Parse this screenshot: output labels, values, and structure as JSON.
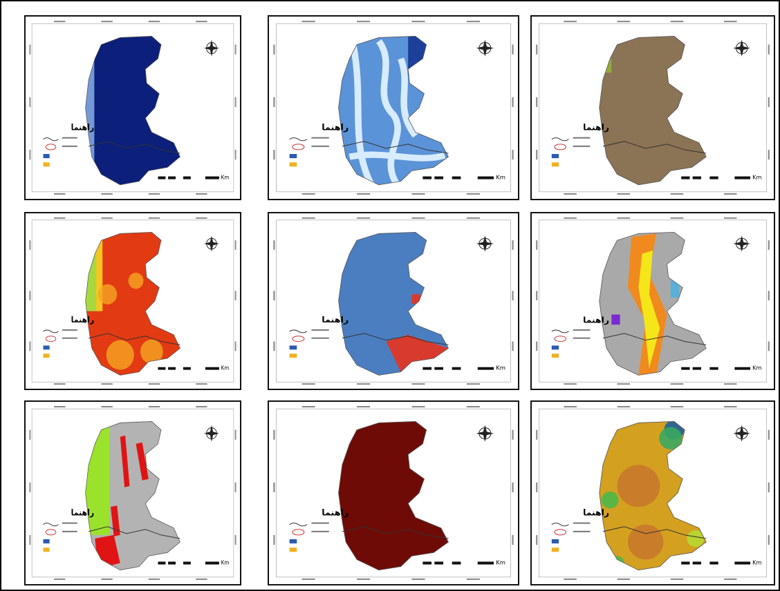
{
  "panels": [
    {
      "legend_title": "راهنما",
      "scale_unit": "Km"
    },
    {
      "legend_title": "راهنما",
      "scale_unit": "Km"
    },
    {
      "legend_title": "راهنما",
      "scale_unit": "Km"
    },
    {
      "legend_title": "راهنما",
      "scale_unit": "Km"
    },
    {
      "legend_title": "راهنما",
      "scale_unit": "Km"
    },
    {
      "legend_title": "راهنما",
      "scale_unit": "Km"
    },
    {
      "legend_title": "راهنما",
      "scale_unit": "Km"
    },
    {
      "legend_title": "راهنما",
      "scale_unit": "Km"
    },
    {
      "legend_title": "راهنما",
      "scale_unit": "Km"
    }
  ]
}
